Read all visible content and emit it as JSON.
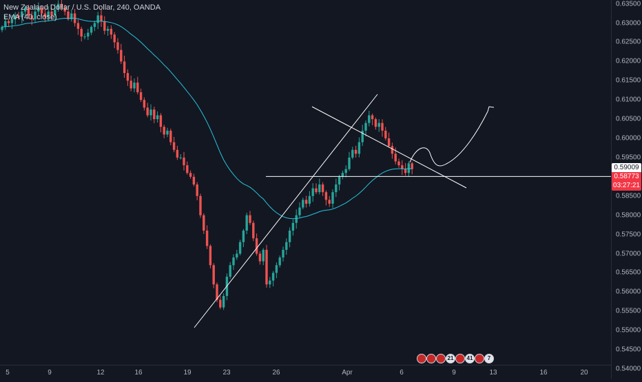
{
  "legend": {
    "symbol_line": "New Zealand Dollar / U.S. Dollar, 240, OANDA",
    "indicator_line": "EMA (40, close)"
  },
  "price_axis": {
    "ticks": [
      "0.63500",
      "0.63000",
      "0.62500",
      "0.62000",
      "0.61500",
      "0.61000",
      "0.60500",
      "0.60000",
      "0.59500",
      "0.59000",
      "0.58500",
      "0.58000",
      "0.57500",
      "0.57000",
      "0.56500",
      "0.56000",
      "0.55500",
      "0.55000",
      "0.54500",
      "0.54000"
    ],
    "level_label": "0.59009",
    "last_price_label": "0.58773",
    "countdown_label": "03:27:21"
  },
  "time_axis": {
    "ticks": [
      "5",
      "9",
      "12",
      "16",
      "19",
      "23",
      "26",
      "Apr",
      "6",
      "9",
      "13",
      "16",
      "20"
    ]
  },
  "events": [
    {
      "icon": "flag-icon",
      "label": ""
    },
    {
      "icon": "flag-icon",
      "label": ""
    },
    {
      "icon": "flag-icon",
      "label": ""
    },
    {
      "icon": "event-count-badge",
      "label": "21"
    },
    {
      "icon": "flag-icon",
      "label": ""
    },
    {
      "icon": "event-count-badge",
      "label": "41"
    },
    {
      "icon": "flag-icon",
      "label": ""
    },
    {
      "icon": "event-count-badge",
      "label": "7"
    }
  ],
  "colors": {
    "background": "#131722",
    "up_candle": "#26a69a",
    "down_candle": "#ef5350",
    "ema": "#26c6da",
    "drawing": "#ffffff",
    "last_price": "#f23645"
  },
  "chart_data": {
    "type": "candlestick",
    "symbol": "NZDUSD",
    "timeframe": "240",
    "y_range": [
      0.5375,
      0.636
    ],
    "horizontal_level": 0.59009,
    "last_price": 0.58773,
    "close_path": [
      [
        0.629,
        0.6305,
        0.63,
        0.631,
        0.632,
        0.6315,
        0.633,
        0.634,
        0.632,
        0.631,
        0.633,
        0.634,
        0.6325,
        0.6315,
        0.633,
        0.632,
        0.6335,
        0.635,
        0.634,
        0.633,
        0.631,
        0.6325,
        0.63,
        0.6285,
        0.6265
      ],
      [
        0.6265,
        0.6275,
        0.629,
        0.63,
        0.632,
        0.6305,
        0.628,
        0.6285,
        0.627,
        0.625,
        0.623,
        0.62,
        0.617,
        0.615,
        0.613,
        0.6145,
        0.612,
        0.61,
        0.608,
        0.606,
        0.6075,
        0.605,
        0.606,
        0.603,
        0.601,
        0.602,
        0.599,
        0.597,
        0.595
      ],
      [
        0.595,
        0.593,
        0.591,
        0.59,
        0.588,
        0.585,
        0.58,
        0.576,
        0.572,
        0.567,
        0.562,
        0.558,
        0.556,
        0.559,
        0.564,
        0.567,
        0.569,
        0.57,
        0.573,
        0.576,
        0.58,
        0.578,
        0.574,
        0.57,
        0.568,
        0.571
      ],
      [
        0.562,
        0.563,
        0.565,
        0.567,
        0.569,
        0.571,
        0.573,
        0.576,
        0.578,
        0.58,
        0.582,
        0.584,
        0.583,
        0.585,
        0.587,
        0.586,
        0.588,
        0.586,
        0.584,
        0.583,
        0.586,
        0.588,
        0.59,
        0.591
      ],
      [
        0.592,
        0.595,
        0.597,
        0.596,
        0.599,
        0.602,
        0.604,
        0.606,
        0.605,
        0.603,
        0.604,
        0.602,
        0.6,
        0.598,
        0.596,
        0.594,
        0.593,
        0.592,
        0.591,
        0.5935,
        0.592,
        0.59,
        0.5925,
        0.5915,
        0.5895,
        0.5905
      ],
      [
        0.5905,
        0.589,
        0.587,
        0.586,
        0.585,
        0.587,
        0.588,
        0.5877
      ]
    ]
  }
}
